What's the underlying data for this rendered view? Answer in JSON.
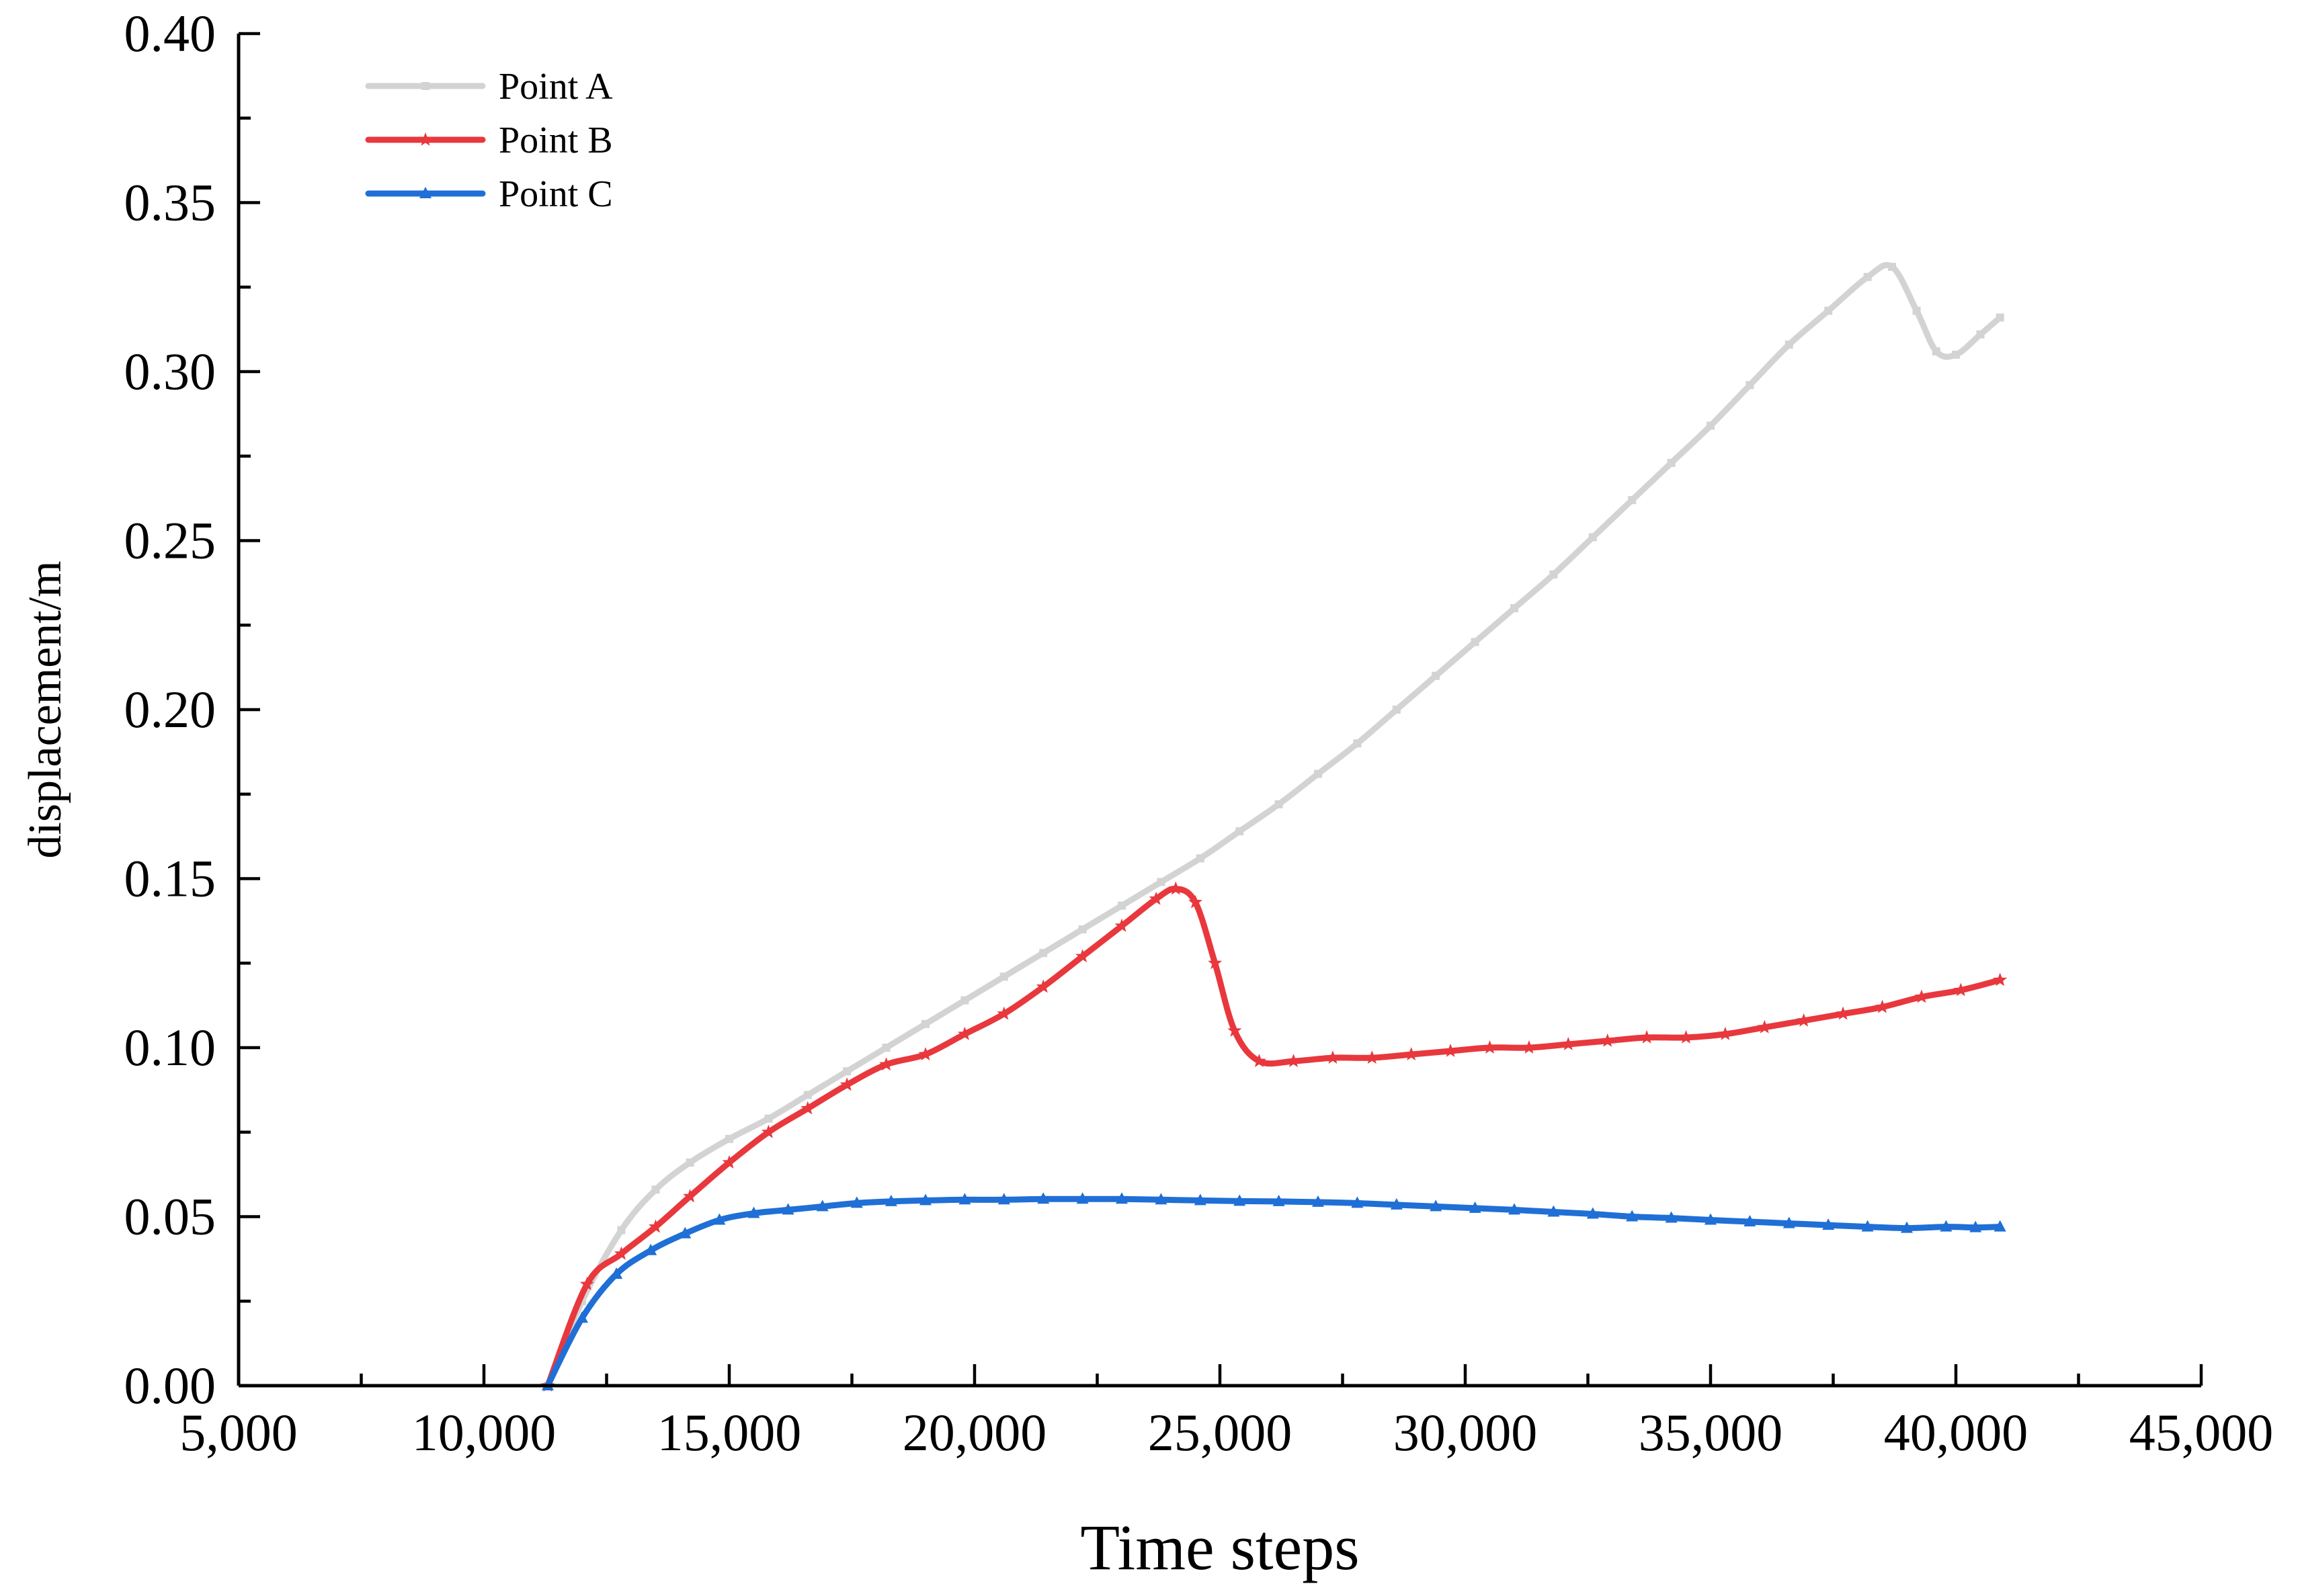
{
  "chart_data": {
    "type": "line",
    "title": "",
    "xlabel": "Time steps",
    "ylabel": "displacement/m",
    "xlim": [
      5000,
      45000
    ],
    "ylim": [
      0,
      0.4
    ],
    "x_ticks": [
      5000,
      10000,
      15000,
      20000,
      25000,
      30000,
      35000,
      40000,
      45000
    ],
    "x_tick_labels": [
      "5,000",
      "10,000",
      "15,000",
      "20,000",
      "25,000",
      "30,000",
      "35,000",
      "40,000",
      "45,000"
    ],
    "y_ticks": [
      0,
      0.05,
      0.1,
      0.15,
      0.2,
      0.25,
      0.3,
      0.35,
      0.4
    ],
    "y_tick_labels": [
      "0.00",
      "0.05",
      "0.10",
      "0.15",
      "0.20",
      "0.25",
      "0.30",
      "0.35",
      "0.40"
    ],
    "grid": false,
    "legend_position": "top-left",
    "series": [
      {
        "name": "Point A",
        "color": "#d3d3d3",
        "marker": "square",
        "x": [
          11300,
          12000,
          12800,
          13500,
          14200,
          15000,
          15800,
          16600,
          17400,
          18200,
          19000,
          19800,
          20600,
          21400,
          22200,
          23000,
          23800,
          24600,
          25400,
          26200,
          27000,
          27800,
          28600,
          29400,
          30200,
          31000,
          31800,
          32600,
          33400,
          34200,
          35000,
          35800,
          36600,
          37400,
          38200,
          38700,
          39200,
          39600,
          40000,
          40500,
          40900
        ],
        "values": [
          0.0,
          0.025,
          0.046,
          0.058,
          0.066,
          0.073,
          0.079,
          0.086,
          0.093,
          0.1,
          0.107,
          0.114,
          0.121,
          0.128,
          0.135,
          0.142,
          0.149,
          0.156,
          0.164,
          0.172,
          0.181,
          0.19,
          0.2,
          0.21,
          0.22,
          0.23,
          0.24,
          0.251,
          0.262,
          0.273,
          0.284,
          0.296,
          0.308,
          0.318,
          0.328,
          0.331,
          0.318,
          0.306,
          0.305,
          0.311,
          0.316
        ]
      },
      {
        "name": "Point B",
        "color": "#e8383d",
        "marker": "star",
        "x": [
          11300,
          12100,
          12800,
          13500,
          14200,
          15000,
          15800,
          16600,
          17400,
          18200,
          19000,
          19800,
          20600,
          21400,
          22200,
          23000,
          23700,
          24100,
          24500,
          24900,
          25300,
          25800,
          26500,
          27300,
          28100,
          28900,
          29700,
          30500,
          31300,
          32100,
          32900,
          33700,
          34500,
          35300,
          36100,
          36900,
          37700,
          38500,
          39300,
          40100,
          40900
        ],
        "values": [
          0.0,
          0.03,
          0.039,
          0.047,
          0.056,
          0.066,
          0.075,
          0.082,
          0.089,
          0.095,
          0.098,
          0.104,
          0.11,
          0.118,
          0.127,
          0.136,
          0.144,
          0.147,
          0.143,
          0.125,
          0.105,
          0.096,
          0.096,
          0.097,
          0.097,
          0.098,
          0.099,
          0.1,
          0.1,
          0.101,
          0.102,
          0.103,
          0.103,
          0.104,
          0.106,
          0.108,
          0.11,
          0.112,
          0.115,
          0.117,
          0.12
        ]
      },
      {
        "name": "Point C",
        "color": "#1f6fd6",
        "marker": "triangle",
        "x": [
          11300,
          12000,
          12700,
          13400,
          14100,
          14800,
          15500,
          16200,
          16900,
          17600,
          18300,
          19000,
          19800,
          20600,
          21400,
          22200,
          23000,
          23800,
          24600,
          25400,
          26200,
          27000,
          27800,
          28600,
          29400,
          30200,
          31000,
          31800,
          32600,
          33400,
          34200,
          35000,
          35800,
          36600,
          37400,
          38200,
          39000,
          39800,
          40400,
          40900
        ],
        "values": [
          0.0,
          0.02,
          0.033,
          0.04,
          0.045,
          0.049,
          0.051,
          0.052,
          0.053,
          0.054,
          0.0545,
          0.0548,
          0.055,
          0.055,
          0.0552,
          0.0552,
          0.0552,
          0.055,
          0.0548,
          0.0546,
          0.0545,
          0.0543,
          0.054,
          0.0535,
          0.053,
          0.0525,
          0.052,
          0.0514,
          0.0508,
          0.05,
          0.0496,
          0.049,
          0.0485,
          0.048,
          0.0475,
          0.047,
          0.0466,
          0.047,
          0.0468,
          0.047
        ]
      }
    ]
  }
}
